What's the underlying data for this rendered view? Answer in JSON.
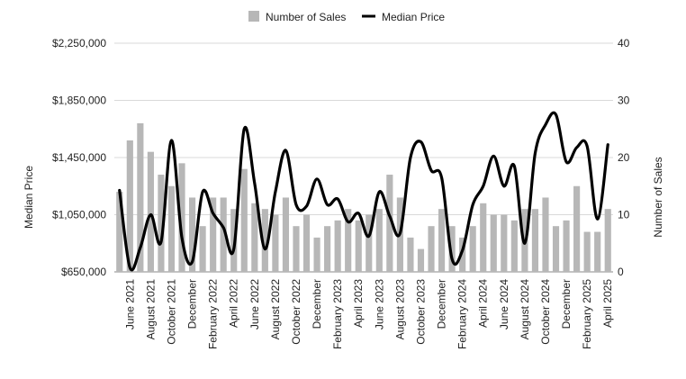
{
  "chart_data": {
    "type": "bar",
    "title": "",
    "xlabel": "",
    "ylabel_left": "Median Price",
    "ylabel_right": "Number of Sales",
    "y_left_lim": [
      650000,
      2250000
    ],
    "y_left_ticks": [
      "$650,000",
      "$1,050,000",
      "$1,450,000",
      "$1,850,000",
      "$2,250,000"
    ],
    "y_right_lim": [
      0,
      40
    ],
    "y_right_ticks": [
      "0",
      "10",
      "20",
      "30",
      "40"
    ],
    "grid": true,
    "legend_position": "top",
    "colors": {
      "sales": "#b7b7b7",
      "price": "#000000"
    },
    "x_tick_labels": [
      "June 2021",
      "August 2021",
      "October 2021",
      "December",
      "February 2022",
      "April 2022",
      "June 2022",
      "August 2022",
      "October 2022",
      "December",
      "February 2023",
      "April 2023",
      "June 2023",
      "August 2023",
      "October 2023",
      "December",
      "February 2024",
      "April 2024",
      "June 2024",
      "August 2024",
      "October 2024",
      "December",
      "February 2025",
      "April 2025"
    ],
    "months": [
      "May 2021",
      "June 2021",
      "July 2021",
      "August 2021",
      "September 2021",
      "October 2021",
      "November 2021",
      "December 2021",
      "January 2022",
      "February 2022",
      "March 2022",
      "April 2022",
      "May 2022",
      "June 2022",
      "July 2022",
      "August 2022",
      "September 2022",
      "October 2022",
      "November 2022",
      "December 2022",
      "January 2023",
      "February 2023",
      "March 2023",
      "April 2023",
      "May 2023",
      "June 2023",
      "July 2023",
      "August 2023",
      "September 2023",
      "October 2023",
      "November 2023",
      "December 2023",
      "January 2024",
      "February 2024",
      "March 2024",
      "April 2024",
      "May 2024",
      "June 2024",
      "July 2024",
      "August 2024",
      "September 2024",
      "October 2024",
      "November 2024",
      "December 2024",
      "January 2025",
      "February 2025",
      "March 2025",
      "April 2025"
    ],
    "series": [
      {
        "name": "Number of Sales",
        "type": "bar",
        "axis": "right",
        "values": [
          14,
          23,
          26,
          21,
          17,
          15,
          19,
          13,
          8,
          13,
          13,
          11,
          18,
          12,
          11,
          10,
          13,
          8,
          10,
          6,
          8,
          9,
          11,
          9,
          10,
          11,
          17,
          13,
          6,
          4,
          8,
          11,
          8,
          6,
          8,
          12,
          10,
          10,
          9,
          11,
          11,
          13,
          8,
          9,
          15,
          7,
          7,
          11
        ]
      },
      {
        "name": "Median Price",
        "type": "line",
        "axis": "left",
        "values": [
          1220000,
          680000,
          820000,
          1050000,
          860000,
          1570000,
          890000,
          720000,
          1210000,
          1060000,
          960000,
          810000,
          1650000,
          1270000,
          810000,
          1210000,
          1500000,
          1120000,
          1110000,
          1300000,
          1120000,
          1160000,
          1000000,
          1060000,
          900000,
          1210000,
          1040000,
          920000,
          1450000,
          1560000,
          1360000,
          1310000,
          740000,
          800000,
          1120000,
          1250000,
          1460000,
          1250000,
          1390000,
          850000,
          1480000,
          1680000,
          1750000,
          1420000,
          1520000,
          1530000,
          1020000,
          1540000
        ]
      }
    ]
  }
}
